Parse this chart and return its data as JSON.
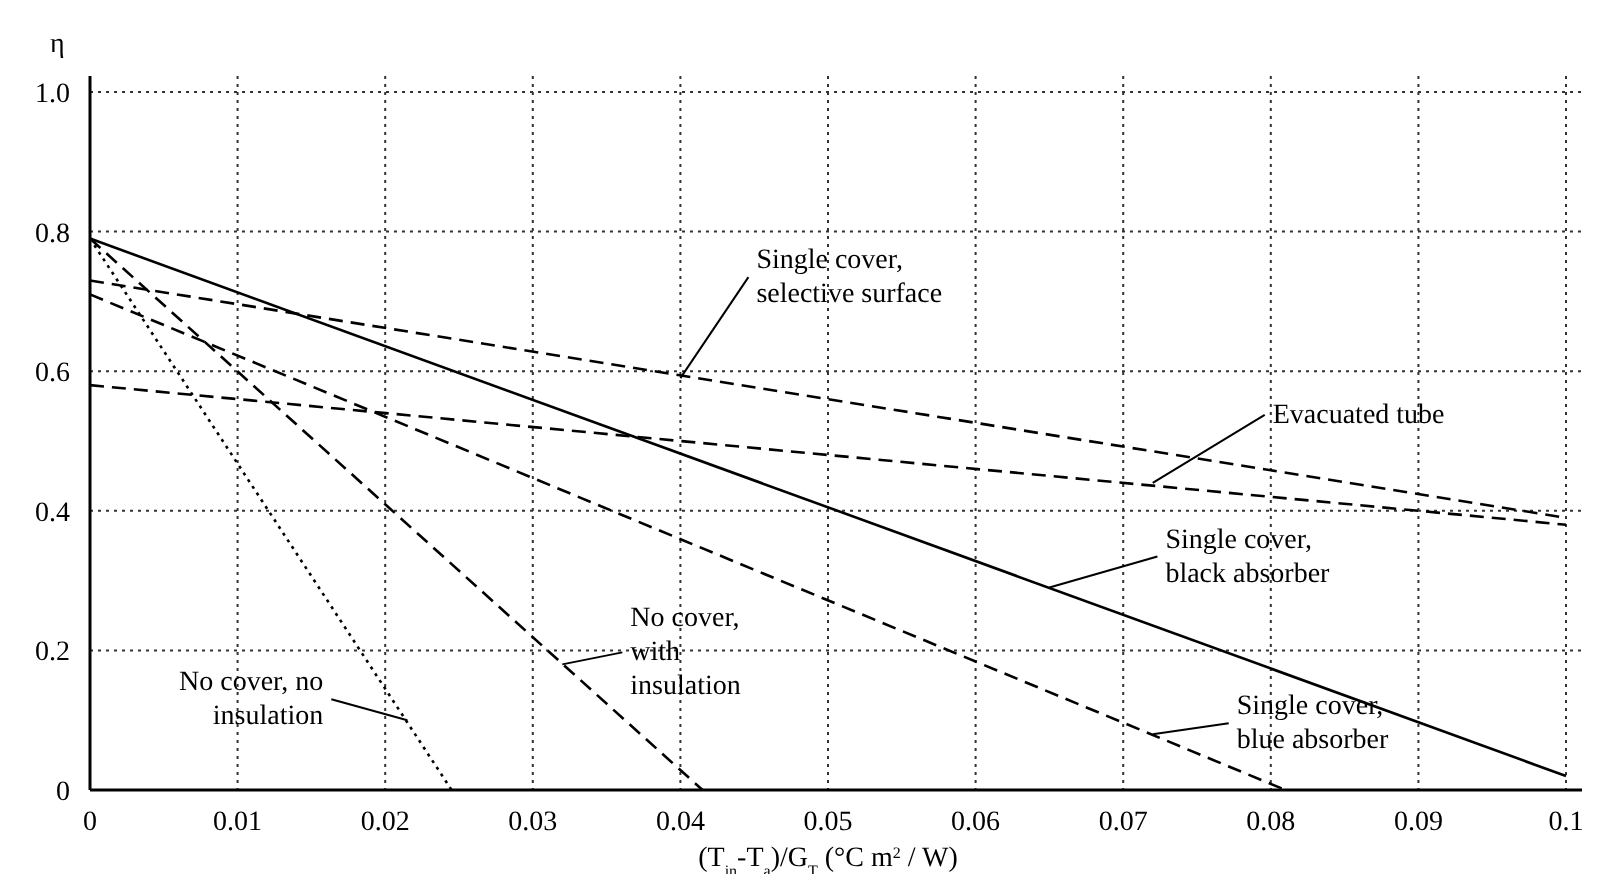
{
  "chart_data": {
    "type": "line",
    "xlabel": "(T$_{in}$-T$_{a}$)/G$_{T}$  (°C m$^{2}$ / W)",
    "ylabel": "η",
    "xlim": [
      0,
      0.1
    ],
    "ylim": [
      0,
      1
    ],
    "xticks": [
      0,
      0.01,
      0.02,
      0.03,
      0.04,
      0.05,
      0.06,
      0.07,
      0.08,
      0.09,
      0.1
    ],
    "yticks": [
      0,
      0.2,
      0.4,
      0.6,
      0.8,
      {
        "value": 1,
        "label": "1.0"
      }
    ],
    "grid": true,
    "marker": "none",
    "series": [
      {
        "color": "#000000",
        "line_style": "dashed",
        "x": [
          0,
          0.1
        ],
        "values": [
          0.73,
          0.39
        ]
      },
      {
        "color": "#000000",
        "line_style": "dashed",
        "x": [
          0,
          0.1
        ],
        "values": [
          0.58,
          0.38
        ]
      },
      {
        "color": "#000000",
        "line_style": "solid",
        "x": [
          0,
          0.1
        ],
        "values": [
          0.79,
          0.02
        ]
      },
      {
        "color": "#000000",
        "line_style": "dashed",
        "x": [
          0,
          0.081
        ],
        "values": [
          0.71,
          0
        ]
      },
      {
        "color": "#000000",
        "line_style": "dashed",
        "x": [
          0,
          0.0415
        ],
        "values": [
          0.79,
          0
        ]
      },
      {
        "color": "#000000",
        "line_style": "dotted",
        "x": [
          0,
          0.0245
        ],
        "values": [
          0.79,
          0
        ]
      }
    ],
    "annotations": [
      {
        "text": "Single cover, selective surface",
        "x": 0.04,
        "y": 0.59
      },
      {
        "text": "Evacuated tube",
        "x": 0.072,
        "y": 0.44
      },
      {
        "text": "Single cover, black absorber",
        "x": 0.065,
        "y": 0.29
      },
      {
        "text": "Single cover, blue absorber",
        "x": 0.072,
        "y": 0.08
      },
      {
        "text": "No cover, with insulation",
        "x": 0.032,
        "y": 0.18
      },
      {
        "text": "No cover, no insulation",
        "x": 0.0215,
        "y": 0.1
      }
    ]
  }
}
